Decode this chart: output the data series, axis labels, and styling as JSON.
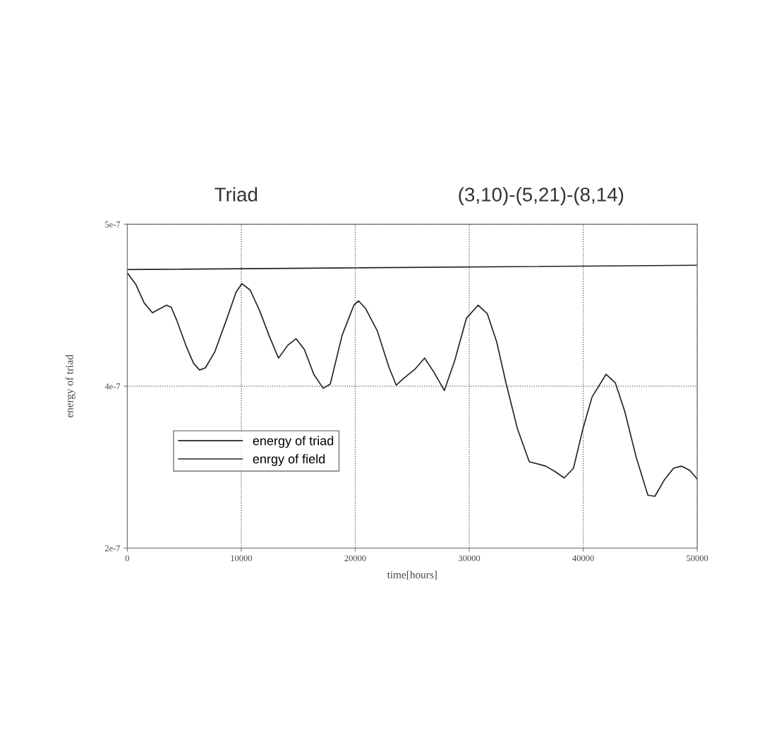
{
  "chart_data": {
    "type": "line",
    "title": "Triad",
    "subtitle": "(3,10)-(5,21)-(8,14)",
    "xlabel": "time[hours]",
    "ylabel": "energy of triad",
    "xlim": [
      0,
      50000
    ],
    "ylim": [
      2e-07,
      5e-07
    ],
    "xticks": [
      0,
      10000,
      20000,
      30000,
      40000,
      50000
    ],
    "yticks": [
      {
        "value": 5e-07,
        "label": "5e-7"
      },
      {
        "value": 3.5e-07,
        "label": "4e-7"
      },
      {
        "value": 2e-07,
        "label": "2e-7"
      }
    ],
    "grid": true,
    "legend": "left",
    "line_style": "solid",
    "marker": "none",
    "series": [
      {
        "name": "energy of triad",
        "color": "#222222",
        "x": [
          0,
          764,
          1488,
          2211,
          2727,
          3450,
          3864,
          4380,
          5207,
          5826,
          6343,
          6860,
          7686,
          8719,
          9545,
          10062,
          10785,
          11612,
          12438,
          13264,
          14091,
          14814,
          15537,
          16364,
          17190,
          17810,
          18843,
          19876,
          20289,
          20909,
          21942,
          22975,
          23595,
          24215,
          25265,
          26082,
          26898,
          27816,
          28735,
          29755,
          30776,
          31592,
          32408,
          33224,
          34245,
          35265,
          36694,
          37510,
          38327,
          39143,
          39959,
          40776,
          42000,
          42816,
          43633,
          44653,
          45673,
          46286,
          47102,
          47918,
          48633,
          49347,
          50000
        ],
        "values": [
          4.55e-07,
          4.44e-07,
          4.27e-07,
          4.18e-07,
          4.21e-07,
          4.25e-07,
          4.23e-07,
          4.1e-07,
          3.86e-07,
          3.71e-07,
          3.65e-07,
          3.67e-07,
          3.82e-07,
          4.12e-07,
          4.37e-07,
          4.45e-07,
          4.39e-07,
          4.2e-07,
          3.97e-07,
          3.76e-07,
          3.88e-07,
          3.94e-07,
          3.84e-07,
          3.61e-07,
          3.48e-07,
          3.52e-07,
          3.97e-07,
          4.25e-07,
          4.29e-07,
          4.22e-07,
          4.01e-07,
          3.67e-07,
          3.51e-07,
          3.57e-07,
          3.66e-07,
          3.76e-07,
          3.63e-07,
          3.46e-07,
          3.74e-07,
          4.13e-07,
          4.25e-07,
          4.17e-07,
          3.91e-07,
          3.53e-07,
          3.1e-07,
          2.8e-07,
          2.76e-07,
          2.71e-07,
          2.65e-07,
          2.74e-07,
          3.1e-07,
          3.4e-07,
          3.61e-07,
          3.53e-07,
          3.27e-07,
          2.84e-07,
          2.49e-07,
          2.48e-07,
          2.63e-07,
          2.74e-07,
          2.76e-07,
          2.72e-07,
          2.64e-07
        ]
      },
      {
        "name": "enrgy of field",
        "color": "#222222",
        "x": [
          0,
          50000
        ],
        "values": [
          4.58e-07,
          4.62e-07
        ]
      }
    ]
  }
}
